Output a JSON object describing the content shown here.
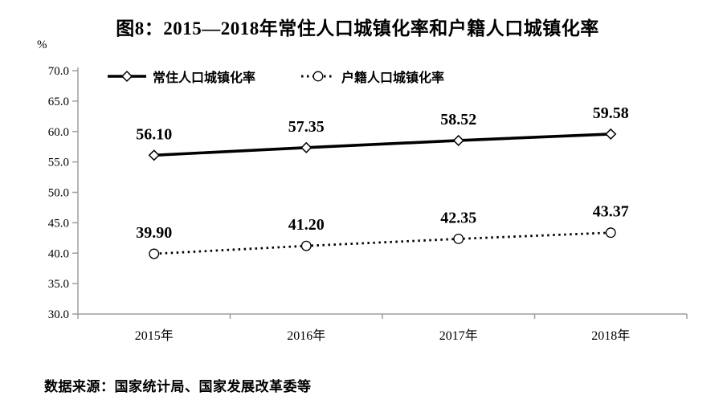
{
  "figure": {
    "title": "图8：2015—2018年常住人口城镇化率和户籍人口城镇化率",
    "y_unit": "%",
    "source": "数据来源：国家统计局、国家发展改革委等"
  },
  "chart_data": {
    "type": "line",
    "title": "图8：2015—2018年常住人口城镇化率和户籍人口城镇化率",
    "categories": [
      "2015年",
      "2016年",
      "2017年",
      "2018年"
    ],
    "series": [
      {
        "name": "常住人口城镇化率",
        "values": [
          56.1,
          57.35,
          58.52,
          59.58
        ],
        "value_labels": [
          "56.10",
          "57.35",
          "58.52",
          "59.58"
        ],
        "line_style": "solid",
        "marker": "diamond",
        "color": "#000000"
      },
      {
        "name": "户籍人口城镇化率",
        "values": [
          39.9,
          41.2,
          42.35,
          43.37
        ],
        "value_labels": [
          "39.90",
          "41.20",
          "42.35",
          "43.37"
        ],
        "line_style": "dotted",
        "marker": "circle",
        "color": "#000000"
      }
    ],
    "xlabel": "",
    "ylabel": "%",
    "ylim": [
      30.0,
      70.0
    ],
    "y_tick_step": 5.0,
    "y_tick_labels": [
      "30.0",
      "35.0",
      "40.0",
      "45.0",
      "50.0",
      "55.0",
      "60.0",
      "65.0",
      "70.0"
    ],
    "grid": false,
    "legend_position": "top-left-inside",
    "colors": {
      "axis": "#9d9d9d",
      "text": "#000000",
      "marker_fill": "#ffffff"
    }
  }
}
